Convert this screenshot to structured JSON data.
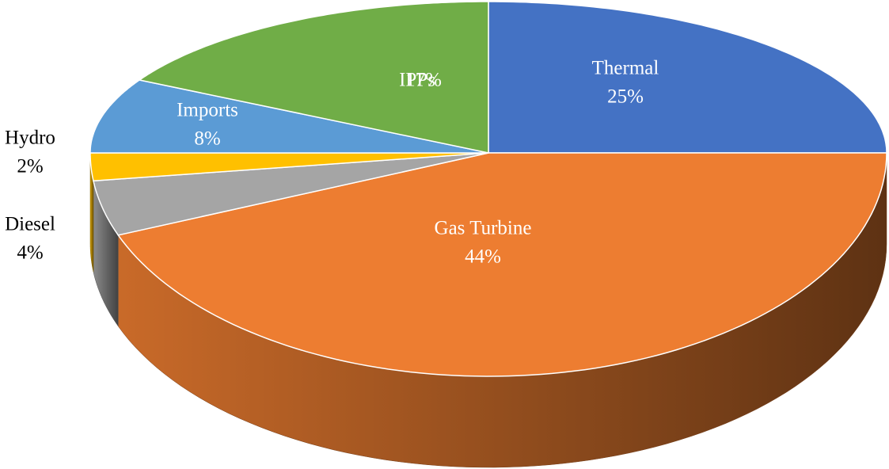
{
  "chart_data": {
    "type": "pie",
    "categories": [
      "Thermal",
      "Gas Turbine",
      "Diesel",
      "Hydro",
      "Imports",
      "IPPs"
    ],
    "values": [
      25,
      44,
      4,
      2,
      8,
      17
    ],
    "value_labels": [
      "25%",
      "44%",
      "4%",
      "2%",
      "8%",
      "17%"
    ],
    "colors": [
      "#4472c4",
      "#ed7d31",
      "#a5a5a5",
      "#ffc000",
      "#5b9bd5",
      "#70ad47"
    ]
  }
}
